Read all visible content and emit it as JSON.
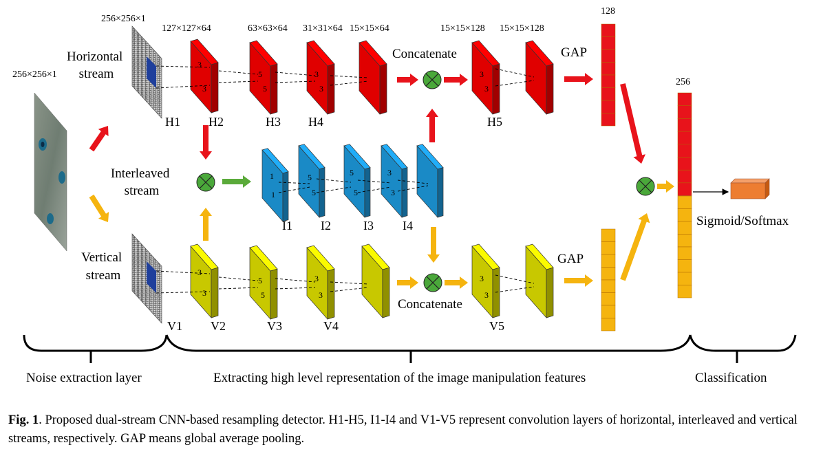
{
  "dims": {
    "input": "256×256×1",
    "noise_h": "256×256×1",
    "h2": "127×127×64",
    "h3": "63×63×64",
    "h4": "31×31×64",
    "h5a": "15×15×64",
    "h5b": "15×15×128",
    "h5c": "15×15×128",
    "gap_h": "128",
    "concat_out": "256"
  },
  "streams": {
    "horizontal": [
      "Horizontal",
      "stream"
    ],
    "interleaved": [
      "Interleaved",
      "stream"
    ],
    "vertical": [
      "Vertical",
      "stream"
    ]
  },
  "layers": {
    "h": [
      "H1",
      "H2",
      "H3",
      "H4",
      "H5"
    ],
    "i": [
      "I1",
      "I2",
      "I3",
      "I4"
    ],
    "v": [
      "V1",
      "V2",
      "V3",
      "V4",
      "V5"
    ]
  },
  "kernels": {
    "h2": [
      "3",
      "3"
    ],
    "h3": [
      "5",
      "5"
    ],
    "h4": [
      "3",
      "3"
    ],
    "h5": [
      "3",
      "3"
    ],
    "i1": [
      "1",
      "1"
    ],
    "i2": [
      "5",
      "5"
    ],
    "i3": [
      "5",
      "5"
    ],
    "i4": [
      "3",
      "3"
    ],
    "v2": [
      "3",
      "3"
    ],
    "v3": [
      "5",
      "5"
    ],
    "v4": [
      "3",
      "3"
    ],
    "v5": [
      "3",
      "3"
    ]
  },
  "ops": {
    "concat_top": "Concatenate",
    "concat_bottom": "Concatenate",
    "gap_top": "GAP",
    "gap_bottom": "GAP",
    "output": "Sigmoid/Softmax"
  },
  "sections": {
    "noise": "Noise extraction layer",
    "features": "Extracting high level representation of the image manipulation features",
    "classification": "Classification"
  },
  "caption": {
    "label": "Fig. 1",
    "text": ". Proposed dual-stream CNN-based resampling detector. H1-H5, I1-I4 and V1-V5 represent convolution layers of horizontal, interleaved and vertical streams, respectively. GAP means global average pooling."
  },
  "colors": {
    "horizontal": "#e00000",
    "interleaved": "#1a8ac6",
    "vertical": "#c8c800",
    "merge": "#4aa83a",
    "arrow_red": "#e8131b",
    "arrow_orange": "#f5b40f",
    "arrow_green": "#5aaa3a",
    "output_box": "#ed7d31"
  }
}
